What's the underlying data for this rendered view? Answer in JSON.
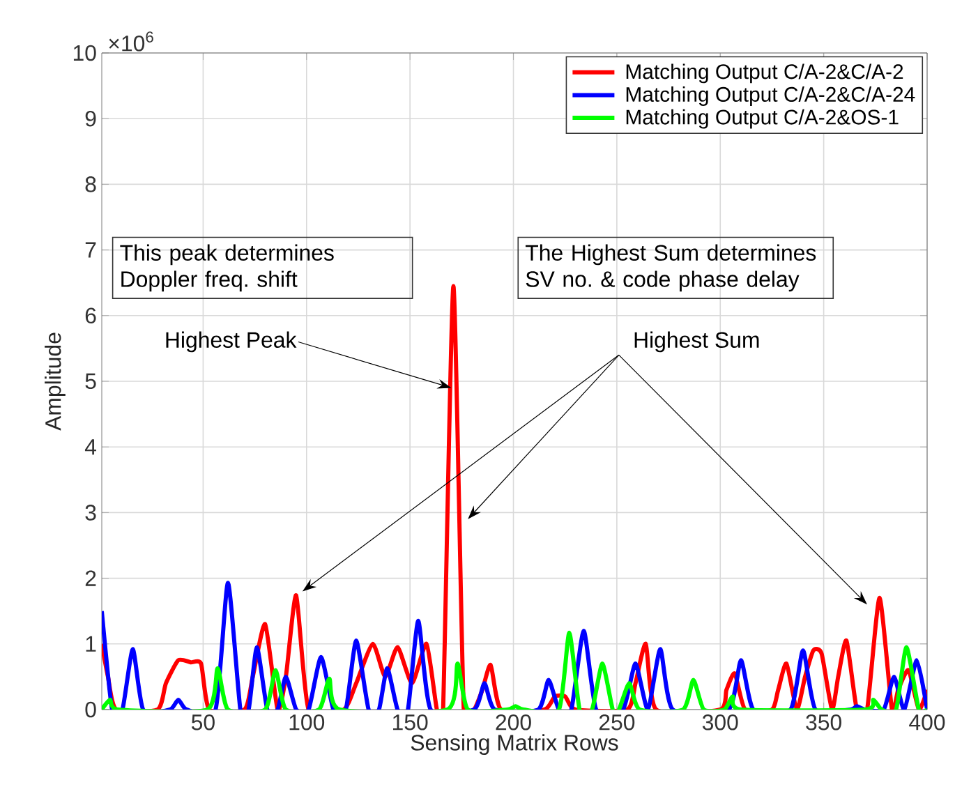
{
  "chart_data": {
    "type": "line",
    "xlabel": "Sensing Matrix Rows",
    "ylabel": "Amplitude",
    "xlim": [
      1,
      400
    ],
    "xticks": [
      50,
      100,
      150,
      200,
      250,
      300,
      350,
      400
    ],
    "ylim": [
      0,
      10
    ],
    "yticks": [
      0,
      1,
      2,
      3,
      4,
      5,
      6,
      7,
      8,
      9,
      10
    ],
    "grid": true,
    "legend": "top right",
    "series": [
      {
        "name": "Matching Output C/A-2&C/A-2",
        "color": "#ff0000",
        "x": [
          1,
          4,
          8,
          28,
          32,
          38,
          44,
          49,
          53,
          70,
          74,
          80,
          86,
          90,
          95,
          101,
          118,
          124,
          132,
          138,
          144,
          151,
          158,
          163,
          166,
          171,
          176,
          181,
          185,
          189,
          194,
          215,
          220,
          225,
          230,
          255,
          259,
          264,
          269,
          300,
          303,
          307,
          312,
          325,
          328,
          332,
          337,
          341,
          345,
          349,
          354,
          357,
          361,
          366,
          371,
          377,
          383,
          386,
          391,
          396,
          400
        ],
        "values": [
          1.0,
          0.5,
          0,
          0,
          0.4,
          0.75,
          0.72,
          0.7,
          0,
          0,
          0.5,
          1.3,
          0,
          0.5,
          1.74,
          0,
          0,
          0.4,
          1.0,
          0.5,
          0.95,
          0.4,
          1.0,
          0,
          0,
          6.45,
          0,
          0,
          0.3,
          0.68,
          0,
          0,
          0.2,
          0.2,
          0,
          0,
          0.4,
          1.0,
          0,
          0,
          0.3,
          0.55,
          0,
          0,
          0.3,
          0.7,
          0,
          0.5,
          0.9,
          0.85,
          0,
          0.5,
          1.05,
          0,
          0,
          1.7,
          0,
          0.3,
          0.6,
          0,
          0.3
        ]
      },
      {
        "name": "Matching Output C/A-2&C/A-24",
        "color": "#0000ff",
        "x": [
          1,
          6,
          11,
          16,
          21,
          34,
          38,
          42,
          56,
          62,
          68,
          72,
          76,
          81,
          86,
          90,
          95,
          101,
          107,
          113,
          119,
          124,
          130,
          135,
          139,
          144,
          149,
          154,
          160,
          181,
          186,
          191,
          212,
          217,
          222,
          228,
          234,
          240,
          253,
          259,
          265,
          271,
          277,
          304,
          310,
          316,
          334,
          340,
          346,
          363,
          366,
          370,
          379,
          384,
          389,
          395,
          400
        ],
        "values": [
          1.5,
          0,
          0,
          0.92,
          0,
          0,
          0.15,
          0,
          0,
          1.93,
          0,
          0,
          0.95,
          0,
          0,
          0.5,
          0,
          0,
          0.8,
          0,
          0,
          1.05,
          0,
          0,
          0.63,
          0,
          0,
          1.35,
          0,
          0,
          0.4,
          0,
          0,
          0.45,
          0,
          0,
          1.2,
          0,
          0,
          0.7,
          0,
          0.92,
          0,
          0,
          0.75,
          0,
          0,
          0.9,
          0,
          0,
          0.05,
          0,
          0,
          0.5,
          0,
          0.75,
          0
        ]
      },
      {
        "name": "Matching Output C/A-2&OS-1",
        "color": "#00ff00",
        "x": [
          1,
          5,
          9,
          52,
          57,
          62,
          80,
          85,
          90,
          106,
          111,
          116,
          168,
          173,
          178,
          197,
          201,
          205,
          222,
          227,
          232,
          238,
          243,
          248,
          251,
          256,
          261,
          282,
          287,
          292,
          302,
          306,
          310,
          370,
          374,
          378,
          385,
          390,
          396,
          400
        ],
        "values": [
          0,
          0.15,
          0,
          0,
          0.63,
          0,
          0,
          0.6,
          0,
          0,
          0.47,
          0,
          0,
          0.7,
          0,
          0,
          0.05,
          0,
          0,
          1.17,
          0,
          0,
          0.7,
          0,
          0,
          0.4,
          0,
          0,
          0.45,
          0,
          0,
          0.2,
          0,
          0,
          0.15,
          0,
          0,
          0.95,
          0,
          0
        ]
      }
    ],
    "annotations": [
      "×10$^{6}$",
      "This peak determines Doppler freq. shift",
      "The Highest Sum determines SV no. & code phase delay",
      {
        "text": "Highest Peak",
        "x": 170,
        "y": 4.9
      },
      "Highest Sum"
    ]
  }
}
